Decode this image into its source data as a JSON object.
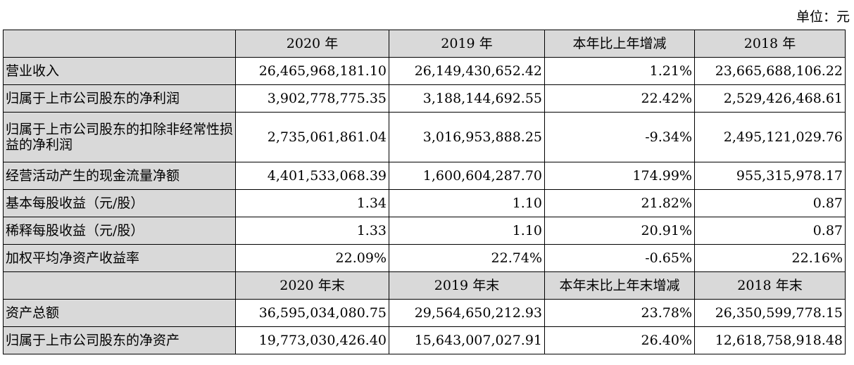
{
  "unit_label": "单位：元",
  "header1": [
    "",
    "2020 年",
    "2019 年",
    "本年比上年增减",
    "2018 年"
  ],
  "rows1": [
    {
      "label": "营业收入",
      "values": [
        "26,465,968,181.10",
        "26,149,430,652.42",
        "1.21%",
        "23,665,688,106.22"
      ]
    },
    {
      "label": "归属于上市公司股东的净利润",
      "values": [
        "3,902,778,775.35",
        "3,188,144,692.55",
        "22.42%",
        "2,529,426,468.61"
      ]
    },
    {
      "label": "归属于上市公司股东的扣除非经常性损益的净利润",
      "values": [
        "2,735,061,861.04",
        "3,016,953,888.25",
        "-9.34%",
        "2,495,121,029.76"
      ]
    },
    {
      "label": "经营活动产生的现金流量净额",
      "values": [
        "4,401,533,068.39",
        "1,600,604,287.70",
        "174.99%",
        "955,315,978.17"
      ]
    },
    {
      "label": "基本每股收益（元/股）",
      "values": [
        "1.34",
        "1.10",
        "21.82%",
        "0.87"
      ]
    },
    {
      "label": "稀释每股收益（元/股）",
      "values": [
        "1.33",
        "1.10",
        "20.91%",
        "0.87"
      ]
    },
    {
      "label": "加权平均净资产收益率",
      "values": [
        "22.09%",
        "22.74%",
        "-0.65%",
        "22.16%"
      ]
    }
  ],
  "header2": [
    "",
    "2020 年末",
    "2019 年末",
    "本年末比上年末增减",
    "2018 年末"
  ],
  "rows2": [
    {
      "label": "资产总额",
      "values": [
        "36,595,034,080.75",
        "29,564,650,212.93",
        "23.78%",
        "26,350,599,778.15"
      ]
    },
    {
      "label": "归属于上市公司股东的净资产",
      "values": [
        "19,773,030,426.40",
        "15,643,007,027.91",
        "26.40%",
        "12,618,758,918.48"
      ]
    }
  ]
}
